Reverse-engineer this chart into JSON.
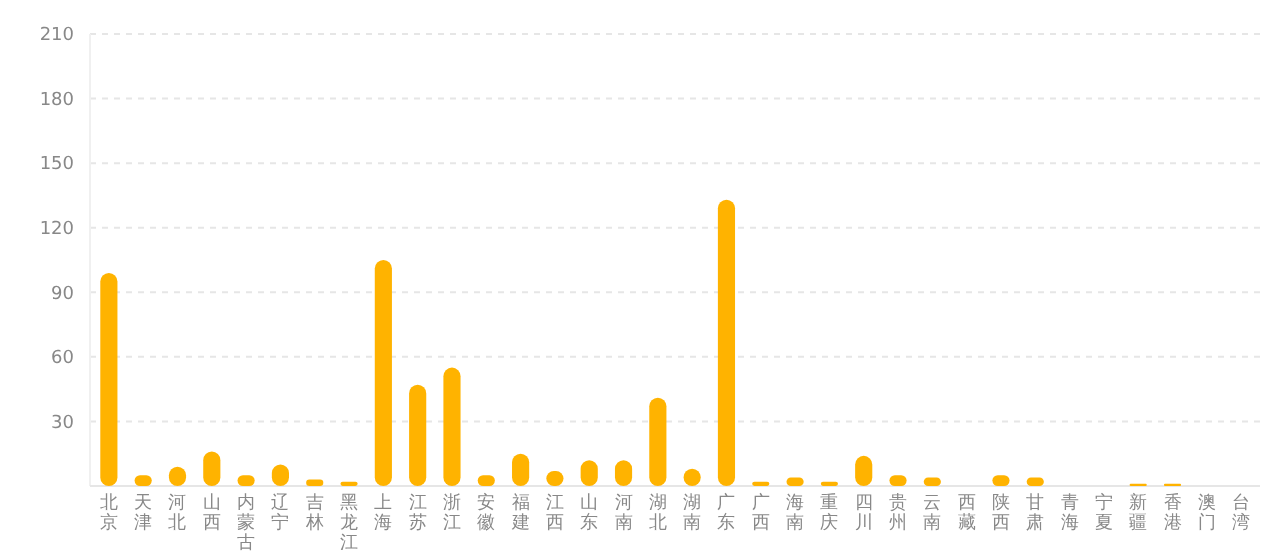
{
  "chart_data": {
    "type": "bar",
    "categories": [
      "北京",
      "天津",
      "河北",
      "山西",
      "内蒙古",
      "辽宁",
      "吉林",
      "黑龙江",
      "上海",
      "江苏",
      "浙江",
      "安徽",
      "福建",
      "江西",
      "山东",
      "河南",
      "湖北",
      "湖南",
      "广东",
      "广西",
      "海南",
      "重庆",
      "四川",
      "贵州",
      "云南",
      "西藏",
      "陕西",
      "甘肃",
      "青海",
      "宁夏",
      "新疆",
      "香港",
      "澳门",
      "台湾"
    ],
    "values": [
      99,
      5,
      9,
      16,
      5,
      10,
      3,
      2,
      105,
      47,
      55,
      5,
      15,
      7,
      12,
      12,
      41,
      8,
      133,
      2,
      4,
      2,
      14,
      5,
      4,
      0,
      5,
      4,
      0,
      0,
      1,
      1,
      0,
      0
    ],
    "color": "#ffb300",
    "ylim": [
      0,
      210
    ],
    "yticks": [
      {
        "value": 0,
        "label": null
      },
      30,
      60,
      90,
      120,
      150,
      180,
      210
    ],
    "grid": "y"
  }
}
